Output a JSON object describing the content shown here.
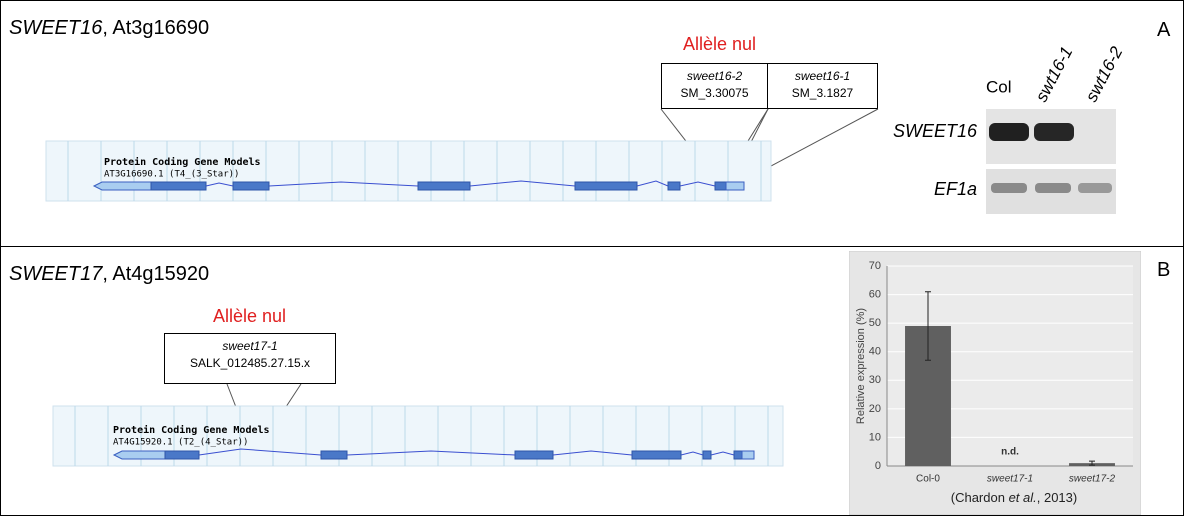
{
  "panel_a": {
    "gene": "SWEET16",
    "locus": ", At3g16690",
    "letter": "A",
    "allele_heading": "Allèle nul",
    "alleles": [
      {
        "name": "sweet16-2",
        "id": "SM_3.30075"
      },
      {
        "name": "sweet16-1",
        "id": "SM_3.1827"
      }
    ],
    "track_title": "Protein Coding Gene Models",
    "model": "AT3G16690.1 (T4_(3_Star))",
    "gel": {
      "lanes": [
        "Col",
        "swt16-1",
        "swt16-2"
      ],
      "rows": [
        "SWEET16",
        "EF1a"
      ]
    }
  },
  "panel_b": {
    "gene": "SWEET17",
    "locus": ", At4g15920",
    "letter": "B",
    "allele_heading": "Allèle nul",
    "alleles": [
      {
        "name": "sweet17-1",
        "id": "SALK_012485.27.15.x"
      }
    ],
    "track_title": "Protein Coding Gene Models",
    "model": "AT4G15920.1 (T2_(4_Star))"
  },
  "chart_data": {
    "type": "bar",
    "y_label": "Relative expression (%)",
    "categories": [
      "Col-0",
      "sweet17-1",
      "sweet17-2"
    ],
    "values": [
      49,
      null,
      1
    ],
    "errors": [
      12,
      null,
      0.7
    ],
    "annotation": "n.d.",
    "color": "#606060",
    "ylim": [
      0,
      70
    ],
    "yticks": [
      0,
      10,
      20,
      30,
      40,
      50,
      60,
      70
    ],
    "grid": true,
    "source_prefix": "(Chardon ",
    "source_italic": "et al.",
    "source_suffix": ", 2013)"
  }
}
